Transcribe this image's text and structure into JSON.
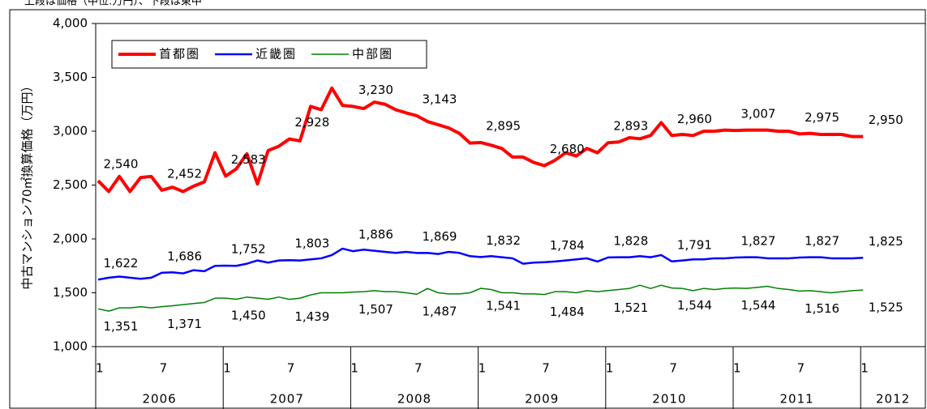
{
  "chart_data": {
    "type": "line",
    "subtitle": "上段は価格（中位:万円）、下段は東中",
    "y_label": "中古マンション70㎡換算価格（万円）",
    "categories": [
      "1",
      null,
      null,
      null,
      null,
      null,
      "7",
      null,
      null,
      null,
      null,
      null,
      "1",
      null,
      null,
      null,
      null,
      null,
      "7",
      null,
      null,
      null,
      null,
      null,
      "1",
      null,
      null,
      null,
      null,
      null,
      "7",
      null,
      null,
      null,
      null,
      null,
      "1",
      null,
      null,
      null,
      null,
      null,
      "7",
      null,
      null,
      null,
      null,
      null,
      "1",
      null,
      null,
      null,
      null,
      null,
      "7",
      null,
      null,
      null,
      null,
      null,
      "1",
      null,
      null,
      null,
      null,
      null,
      "7",
      null,
      null,
      null,
      null,
      null,
      "1"
    ],
    "years": [
      "2006",
      "2007",
      "2008",
      "2009",
      "2010",
      "2011",
      "2012"
    ],
    "ylim": [
      1000,
      4000
    ],
    "yticks": [
      {
        "value": 1000,
        "label": "1,000"
      },
      {
        "value": 1500,
        "label": "1,500"
      },
      {
        "value": 2000,
        "label": "2,000"
      },
      {
        "value": 2500,
        "label": "2,500"
      },
      {
        "value": 3000,
        "label": "3,000"
      },
      {
        "value": 3500,
        "label": "3,500"
      },
      {
        "value": 4000,
        "label": "4,000"
      }
    ],
    "legend": "upper left",
    "series": [
      {
        "name": "首都圏",
        "color": "#ff0000",
        "width": 4,
        "values": [
          2540,
          2440,
          2580,
          2440,
          2570,
          2580,
          2452,
          2480,
          2440,
          2490,
          2530,
          2800,
          2583,
          2650,
          2790,
          2510,
          2820,
          2860,
          2928,
          2910,
          3230,
          3200,
          3400,
          3240,
          3230,
          3210,
          3270,
          3250,
          3200,
          3170,
          3143,
          3090,
          3060,
          3030,
          2980,
          2890,
          2895,
          2870,
          2840,
          2760,
          2760,
          2710,
          2680,
          2730,
          2800,
          2770,
          2840,
          2800,
          2893,
          2900,
          2940,
          2930,
          2960,
          3080,
          2960,
          2970,
          2960,
          3000,
          3000,
          3010,
          3007,
          3010,
          3010,
          3010,
          3000,
          3000,
          2975,
          2980,
          2970,
          2970,
          2970,
          2950,
          2950
        ],
        "value_labels": [
          "2,540",
          null,
          null,
          null,
          null,
          null,
          "2,452",
          null,
          null,
          null,
          null,
          null,
          "2,583",
          null,
          null,
          null,
          null,
          null,
          "2,928",
          null,
          null,
          null,
          null,
          null,
          "3,230",
          null,
          null,
          null,
          null,
          null,
          "3,143",
          null,
          null,
          null,
          null,
          null,
          "2,895",
          null,
          null,
          null,
          null,
          null,
          "2,680",
          null,
          null,
          null,
          null,
          null,
          "2,893",
          null,
          null,
          null,
          null,
          null,
          "2,960",
          null,
          null,
          null,
          null,
          null,
          "3,007",
          null,
          null,
          null,
          null,
          null,
          "2,975",
          null,
          null,
          null,
          null,
          null,
          "2,950"
        ]
      },
      {
        "name": "近畿圏",
        "color": "#0000ff",
        "width": 2.5,
        "values": [
          1622,
          1640,
          1650,
          1640,
          1630,
          1640,
          1686,
          1690,
          1680,
          1710,
          1700,
          1750,
          1752,
          1750,
          1770,
          1800,
          1780,
          1800,
          1803,
          1800,
          1810,
          1820,
          1850,
          1910,
          1886,
          1900,
          1890,
          1880,
          1870,
          1880,
          1869,
          1870,
          1860,
          1880,
          1870,
          1840,
          1832,
          1840,
          1830,
          1820,
          1770,
          1780,
          1784,
          1790,
          1800,
          1810,
          1820,
          1790,
          1828,
          1830,
          1830,
          1840,
          1830,
          1850,
          1791,
          1800,
          1810,
          1810,
          1820,
          1820,
          1827,
          1830,
          1830,
          1820,
          1820,
          1820,
          1827,
          1830,
          1830,
          1820,
          1820,
          1820,
          1825
        ],
        "value_labels": [
          "1,622",
          null,
          null,
          null,
          null,
          null,
          "1,686",
          null,
          null,
          null,
          null,
          null,
          "1,752",
          null,
          null,
          null,
          null,
          null,
          "1,803",
          null,
          null,
          null,
          null,
          null,
          "1,886",
          null,
          null,
          null,
          null,
          null,
          "1,869",
          null,
          null,
          null,
          null,
          null,
          "1,832",
          null,
          null,
          null,
          null,
          null,
          "1,784",
          null,
          null,
          null,
          null,
          null,
          "1,828",
          null,
          null,
          null,
          null,
          null,
          "1,791",
          null,
          null,
          null,
          null,
          null,
          "1,827",
          null,
          null,
          null,
          null,
          null,
          "1,827",
          null,
          null,
          null,
          null,
          null,
          "1,825"
        ]
      },
      {
        "name": "中部圏",
        "color": "#008000",
        "width": 1.5,
        "values": [
          1351,
          1330,
          1360,
          1360,
          1370,
          1360,
          1371,
          1380,
          1390,
          1400,
          1410,
          1450,
          1450,
          1440,
          1460,
          1450,
          1440,
          1460,
          1439,
          1450,
          1480,
          1500,
          1500,
          1500,
          1507,
          1510,
          1520,
          1510,
          1510,
          1500,
          1487,
          1540,
          1500,
          1490,
          1490,
          1500,
          1541,
          1530,
          1500,
          1500,
          1490,
          1490,
          1484,
          1510,
          1510,
          1500,
          1520,
          1510,
          1521,
          1530,
          1540,
          1570,
          1540,
          1570,
          1544,
          1540,
          1520,
          1540,
          1530,
          1540,
          1544,
          1540,
          1550,
          1560,
          1540,
          1530,
          1516,
          1520,
          1510,
          1500,
          1510,
          1520,
          1525
        ],
        "value_labels": [
          "1,351",
          null,
          null,
          null,
          null,
          null,
          "1,371",
          null,
          null,
          null,
          null,
          null,
          "1,450",
          null,
          null,
          null,
          null,
          null,
          "1,439",
          null,
          null,
          null,
          null,
          null,
          "1,507",
          null,
          null,
          null,
          null,
          null,
          "1,487",
          null,
          null,
          null,
          null,
          null,
          "1,541",
          null,
          null,
          null,
          null,
          null,
          "1,484",
          null,
          null,
          null,
          null,
          null,
          "1,521",
          null,
          null,
          null,
          null,
          null,
          "1,544",
          null,
          null,
          null,
          null,
          null,
          "1,544",
          null,
          null,
          null,
          null,
          null,
          "1,516",
          null,
          null,
          null,
          null,
          null,
          "1,525"
        ]
      }
    ]
  }
}
